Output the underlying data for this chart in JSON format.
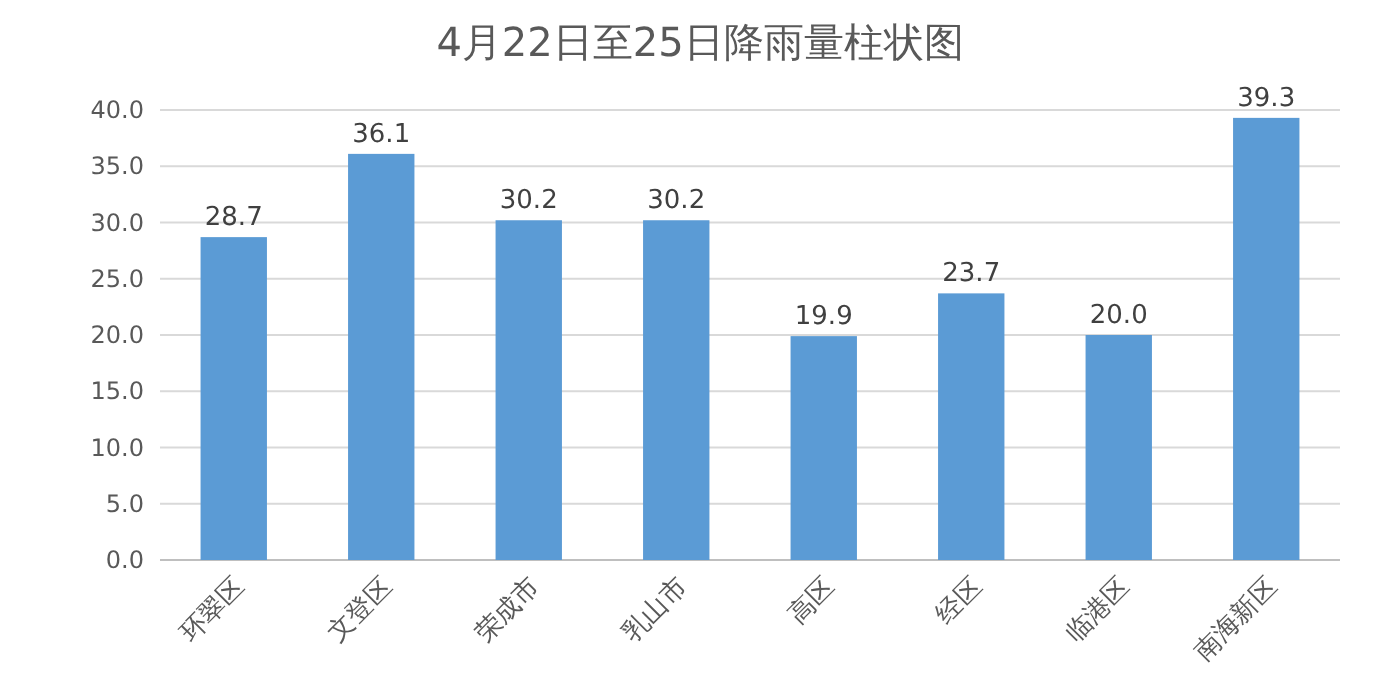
{
  "chart_data": {
    "type": "bar",
    "title": "4月22日至25日降雨量柱状图",
    "categories": [
      "环翠区",
      "文登区",
      "荣成市",
      "乳山市",
      "高区",
      "经区",
      "临港区",
      "南海新区"
    ],
    "values": [
      28.7,
      36.1,
      30.2,
      30.2,
      19.9,
      23.7,
      20.0,
      39.3
    ],
    "value_labels": [
      "28.7",
      "36.1",
      "30.2",
      "30.2",
      "19.9",
      "23.7",
      "20.0",
      "39.3"
    ],
    "color": "#5b9bd5",
    "ylim": [
      0,
      40
    ],
    "yticks": [
      {
        "value": 0,
        "label": "0.0"
      },
      {
        "value": 5,
        "label": "5.0"
      },
      {
        "value": 10,
        "label": "10.0"
      },
      {
        "value": 15,
        "label": "15.0"
      },
      {
        "value": 20,
        "label": "20.0"
      },
      {
        "value": 25,
        "label": "25.0"
      },
      {
        "value": 30,
        "label": "30.0"
      },
      {
        "value": 35,
        "label": "35.0"
      },
      {
        "value": 40,
        "label": "40.0"
      }
    ],
    "grid": "y"
  }
}
